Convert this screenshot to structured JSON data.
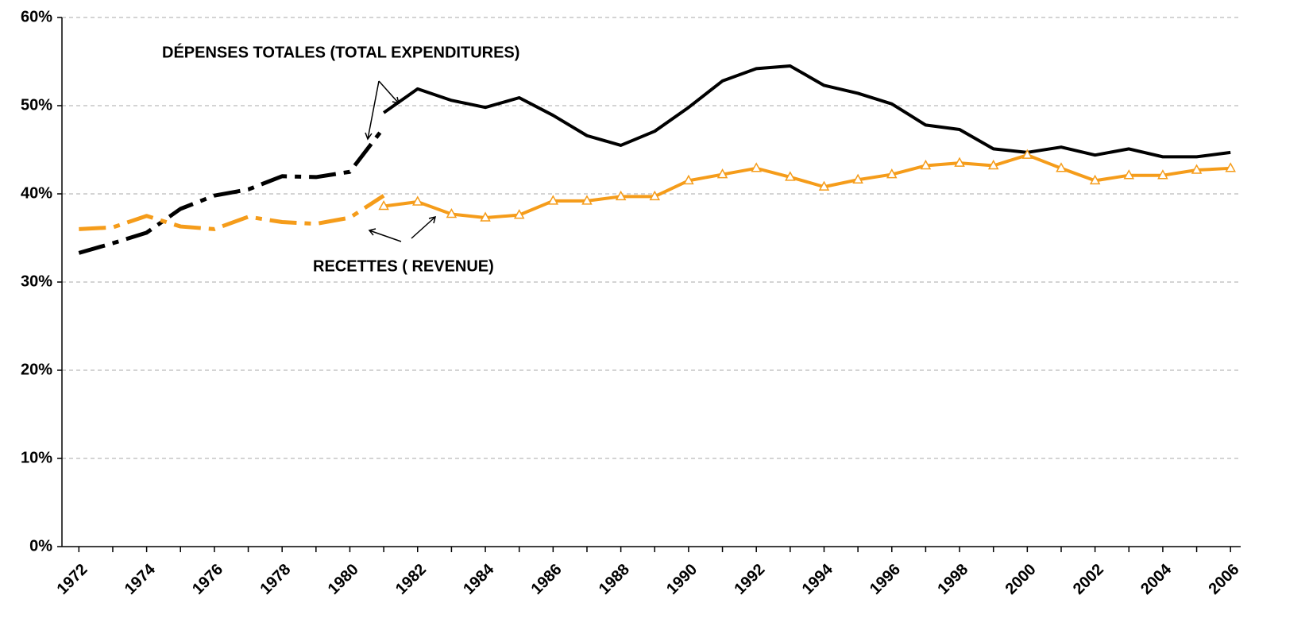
{
  "chart_data": {
    "type": "line",
    "annotations": [
      "DÉPENSES TOTALES (TOTAL EXPENDITURES)",
      "RECETTES ( REVENUE)"
    ],
    "xlim": [
      1971.5,
      2006.3
    ],
    "xticks": [
      1972,
      1974,
      1976,
      1978,
      1980,
      1982,
      1984,
      1986,
      1988,
      1990,
      1992,
      1994,
      1996,
      1998,
      2000,
      2002,
      2004,
      2006
    ],
    "xminor": true,
    "ylim": [
      0,
      60
    ],
    "yticks": [
      {
        "value": 0,
        "label": "0%"
      },
      {
        "value": 10,
        "label": "10%"
      },
      {
        "value": 20,
        "label": "20%"
      },
      {
        "value": 30,
        "label": "30%"
      },
      {
        "value": 40,
        "label": "40%"
      },
      {
        "value": 50,
        "label": "50%"
      },
      {
        "value": 60,
        "label": "60%"
      }
    ],
    "grid": true,
    "series": [
      {
        "color": "#000000",
        "dashed": true,
        "x": [
          1972,
          1973,
          1974,
          1975,
          1976,
          1977,
          1978,
          1979,
          1980,
          1981
        ],
        "values": [
          33.3,
          34.4,
          35.6,
          38.3,
          39.8,
          40.5,
          42.0,
          41.9,
          42.5,
          47.5
        ]
      },
      {
        "color": "#000000",
        "dashed": false,
        "x": [
          1981,
          1982,
          1983,
          1984,
          1985,
          1986,
          1987,
          1988,
          1989,
          1990,
          1991,
          1992,
          1993,
          1994,
          1995,
          1996,
          1997,
          1998,
          1999,
          2000,
          2001,
          2002,
          2003,
          2004,
          2005,
          2006
        ],
        "values": [
          49.2,
          51.9,
          50.6,
          49.8,
          50.9,
          48.9,
          46.6,
          45.5,
          47.1,
          49.8,
          52.8,
          54.2,
          54.5,
          52.3,
          51.4,
          50.2,
          47.8,
          47.3,
          45.1,
          44.7,
          45.3,
          44.4,
          45.1,
          44.2,
          44.2,
          44.7
        ]
      },
      {
        "color": "#f59c1a",
        "dashed": true,
        "x": [
          1972,
          1973,
          1974,
          1975,
          1976,
          1977,
          1978,
          1979,
          1980,
          1981
        ],
        "values": [
          36.0,
          36.2,
          37.5,
          36.3,
          36.0,
          37.4,
          36.8,
          36.6,
          37.3,
          39.8
        ]
      },
      {
        "color": "#f59c1a",
        "dashed": false,
        "marker": "triangle",
        "x": [
          1981,
          1982,
          1983,
          1984,
          1985,
          1986,
          1987,
          1988,
          1989,
          1990,
          1991,
          1992,
          1993,
          1994,
          1995,
          1996,
          1997,
          1998,
          1999,
          2000,
          2001,
          2002,
          2003,
          2004,
          2005,
          2006
        ],
        "values": [
          38.6,
          39.1,
          37.7,
          37.3,
          37.6,
          39.2,
          39.2,
          39.7,
          39.7,
          41.5,
          42.2,
          42.9,
          41.9,
          40.8,
          41.6,
          42.2,
          43.2,
          43.5,
          43.2,
          44.4,
          42.9,
          41.5,
          42.1,
          42.1,
          42.7,
          42.9
        ]
      }
    ]
  }
}
